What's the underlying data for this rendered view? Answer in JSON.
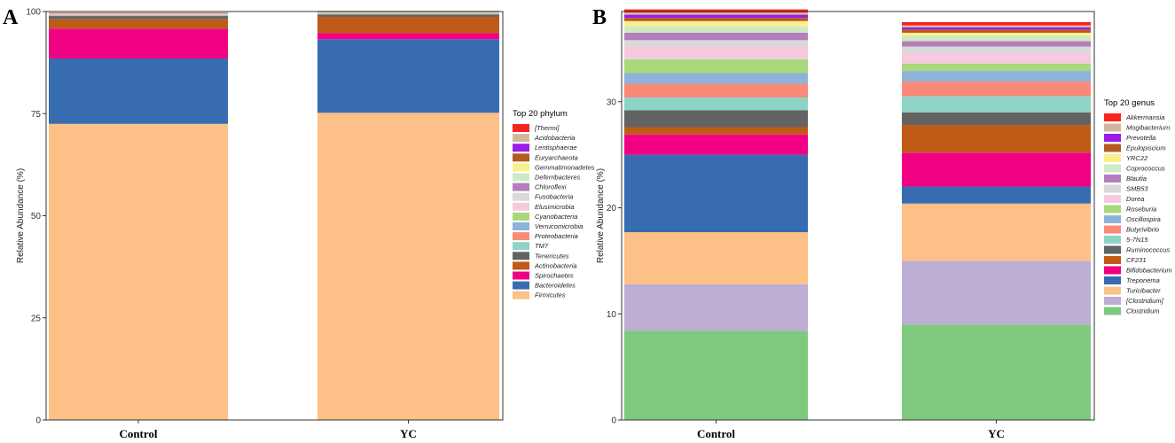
{
  "colors": {
    "c1": "#F8241E",
    "c2": "#D3B79D",
    "c3": "#9A1EE5",
    "c4": "#B55A23",
    "c5": "#FAF08B",
    "c6": "#CFE9C4",
    "c7": "#B57DBD",
    "c8": "#D9D9D9",
    "c9": "#F7C9DE",
    "c10": "#A8D87A",
    "c11": "#8EB3D9",
    "c12": "#F98A78",
    "c13": "#8DD4C7",
    "c14": "#636363",
    "c15": "#BF5B17",
    "c16": "#F00083",
    "c17": "#386CB0",
    "c18": "#FDC086",
    "c19": "#BEAED4",
    "c20": "#7FC97F"
  },
  "chart_data": [
    {
      "panel_label": "A",
      "type": "bar",
      "stacked": true,
      "categories": [
        "Control",
        "YC"
      ],
      "ylabel": "Relative Abundance (%)",
      "ylim": [
        0,
        100
      ],
      "yticks": [
        0,
        25,
        50,
        75,
        100
      ],
      "legend_title": "Top 20 phylum",
      "series": [
        {
          "name": "Firmicutes",
          "color_key": "c18",
          "values": [
            72.5,
            75.2
          ]
        },
        {
          "name": "Bacteroidetes",
          "color_key": "c17",
          "values": [
            16.0,
            18.0
          ]
        },
        {
          "name": "Spirochaetes",
          "color_key": "c16",
          "values": [
            7.3,
            1.5
          ]
        },
        {
          "name": "Actinobacteria",
          "color_key": "c15",
          "values": [
            2.3,
            4.0
          ]
        },
        {
          "name": "Tenericutes",
          "color_key": "c14",
          "values": [
            0.8,
            0.6
          ]
        },
        {
          "name": "TM7",
          "color_key": "c13",
          "values": [
            0.1,
            0.1
          ]
        },
        {
          "name": "Proteobacteria",
          "color_key": "c12",
          "values": [
            0.1,
            0.1
          ]
        },
        {
          "name": "Verrucomicrobia",
          "color_key": "c11",
          "values": [
            0.1,
            0.1
          ]
        },
        {
          "name": "Cyanobacteria",
          "color_key": "c10",
          "values": [
            0.1,
            0.1
          ]
        },
        {
          "name": "Elusimicrobia",
          "color_key": "c9",
          "values": [
            0.05,
            0.05
          ]
        },
        {
          "name": "Fusobacteria",
          "color_key": "c8",
          "values": [
            0.05,
            0.05
          ]
        },
        {
          "name": "Chloroflexi",
          "color_key": "c7",
          "values": [
            0.05,
            0.05
          ]
        },
        {
          "name": "Deferribacteres",
          "color_key": "c6",
          "values": [
            0.05,
            0.05
          ]
        },
        {
          "name": "Gemmatimonadetes",
          "color_key": "c5",
          "values": [
            0.05,
            0.05
          ]
        },
        {
          "name": "Euryarchaeota",
          "color_key": "c4",
          "values": [
            0.05,
            0.05
          ]
        },
        {
          "name": "Lentisphaerae",
          "color_key": "c3",
          "values": [
            0.05,
            0.05
          ]
        },
        {
          "name": "Acidobacteria",
          "color_key": "c2",
          "values": [
            0.05,
            0.05
          ]
        },
        {
          "name": "[Thermi]",
          "color_key": "c1",
          "values": [
            0.05,
            0.05
          ]
        }
      ]
    },
    {
      "panel_label": "B",
      "type": "bar",
      "stacked": true,
      "categories": [
        "Control",
        "YC"
      ],
      "ylabel": "Relative Abundance (%)",
      "ylim": [
        0,
        38.5
      ],
      "yticks": [
        0,
        10,
        20,
        30
      ],
      "legend_title": "Top 20 genus",
      "series": [
        {
          "name": "Clostridium",
          "color_key": "c20",
          "values": [
            8.4,
            9.0
          ]
        },
        {
          "name": "[Clostridium]",
          "color_key": "c19",
          "values": [
            4.4,
            6.0
          ]
        },
        {
          "name": "Turicibacter",
          "color_key": "c18",
          "values": [
            4.9,
            5.4
          ]
        },
        {
          "name": "Treponema",
          "color_key": "c17",
          "values": [
            7.3,
            1.6
          ]
        },
        {
          "name": "Bifidobacterium",
          "color_key": "c16",
          "values": [
            1.9,
            3.2
          ]
        },
        {
          "name": "CF231",
          "color_key": "c15",
          "values": [
            0.7,
            2.6
          ]
        },
        {
          "name": "Ruminococcus",
          "color_key": "c14",
          "values": [
            1.6,
            1.2
          ]
        },
        {
          "name": "5-7N15",
          "color_key": "c13",
          "values": [
            1.2,
            1.5
          ]
        },
        {
          "name": "Butyrivibrio",
          "color_key": "c12",
          "values": [
            1.3,
            1.4
          ]
        },
        {
          "name": "Oscillospira",
          "color_key": "c11",
          "values": [
            1.0,
            1.0
          ]
        },
        {
          "name": "Roseburia",
          "color_key": "c10",
          "values": [
            1.3,
            0.7
          ]
        },
        {
          "name": "Dorea",
          "color_key": "c9",
          "values": [
            1.2,
            1.0
          ]
        },
        {
          "name": "SMB53",
          "color_key": "c8",
          "values": [
            0.6,
            0.6
          ]
        },
        {
          "name": "Blautia",
          "color_key": "c7",
          "values": [
            0.7,
            0.5
          ]
        },
        {
          "name": "Coprococcus",
          "color_key": "c6",
          "values": [
            0.6,
            0.5
          ]
        },
        {
          "name": "YRC22",
          "color_key": "c5",
          "values": [
            0.5,
            0.3
          ]
        },
        {
          "name": "Epulopiscium",
          "color_key": "c4",
          "values": [
            0.3,
            0.3
          ]
        },
        {
          "name": "Prevotella",
          "color_key": "c3",
          "values": [
            0.3,
            0.2
          ]
        },
        {
          "name": "Mogibacterium",
          "color_key": "c2",
          "values": [
            0.2,
            0.2
          ]
        },
        {
          "name": "Akkermansia",
          "color_key": "c1",
          "values": [
            0.3,
            0.3
          ]
        }
      ]
    }
  ]
}
